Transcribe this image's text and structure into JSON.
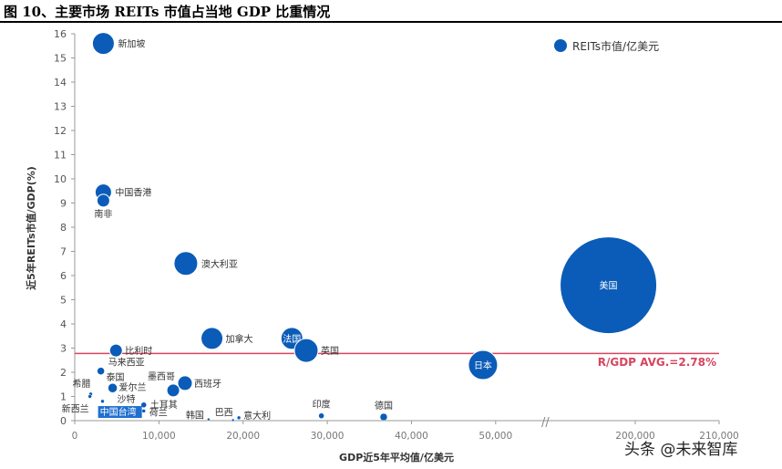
{
  "title": "图 10、主要市场 REITs 市值占当地 GDP 比重情况",
  "watermark": "头条 @未来智库",
  "chart_data": {
    "type": "bubble",
    "xlabel": "GDP近5年平均值/亿美元",
    "ylabel": "近5年REITs市值/GDP(%)",
    "legend": {
      "label": "REITs市值/亿美元",
      "position": "top-right"
    },
    "x_ticks": [
      "0",
      "10,000",
      "20,000",
      "30,000",
      "40,000",
      "50,000",
      "200,000",
      "210,000"
    ],
    "x_break": [
      55000,
      195000
    ],
    "ylim": [
      0,
      16
    ],
    "y_ticks": [
      "0",
      "1",
      "2",
      "3",
      "4",
      "5",
      "6",
      "7",
      "8",
      "9",
      "10",
      "11",
      "12",
      "13",
      "14",
      "15",
      "16"
    ],
    "avg_line": {
      "value": 2.78,
      "label": "R/GDP AVG.=2.78%",
      "color": "#d6455f"
    },
    "bubble_color": "#0a5cb8",
    "points": [
      {
        "name": "新加坡",
        "x": 3400,
        "y": 15.6,
        "size": 12
      },
      {
        "name": "中国香港",
        "x": 3400,
        "y": 9.45,
        "size": 9
      },
      {
        "name": "南非",
        "x": 3400,
        "y": 9.1,
        "size": 7
      },
      {
        "name": "澳大利亚",
        "x": 13200,
        "y": 6.5,
        "size": 13
      },
      {
        "name": "加拿大",
        "x": 16300,
        "y": 3.4,
        "size": 12
      },
      {
        "name": "法国",
        "x": 25800,
        "y": 3.4,
        "size": 12
      },
      {
        "name": "英国",
        "x": 27500,
        "y": 2.9,
        "size": 13
      },
      {
        "name": "日本",
        "x": 48500,
        "y": 2.3,
        "size": 16
      },
      {
        "name": "美国",
        "x": 196800,
        "y": 5.6,
        "size": 53
      },
      {
        "name": "比利时",
        "x": 4900,
        "y": 2.9,
        "size": 7
      },
      {
        "name": "马来西亚",
        "x": 3100,
        "y": 2.05,
        "size": 4
      },
      {
        "name": "泰国",
        "x": 4500,
        "y": 1.35,
        "size": 5
      },
      {
        "name": "爱尔兰",
        "x": 4500,
        "y": 1.35,
        "size": 5
      },
      {
        "name": "墨西哥",
        "x": 11700,
        "y": 1.25,
        "size": 7
      },
      {
        "name": "西班牙",
        "x": 13100,
        "y": 1.55,
        "size": 8
      },
      {
        "name": "希腊",
        "x": 1900,
        "y": 1.1,
        "size": 2
      },
      {
        "name": "新西兰",
        "x": 1800,
        "y": 1.0,
        "size": 2
      },
      {
        "name": "沙特",
        "x": 3300,
        "y": 0.8,
        "size": 2
      },
      {
        "name": "土耳其",
        "x": 8200,
        "y": 0.65,
        "size": 3
      },
      {
        "name": "荷兰",
        "x": 8200,
        "y": 0.4,
        "size": 2
      },
      {
        "name": "中国台湾",
        "x": 7000,
        "y": 0.3,
        "size": 2
      },
      {
        "name": "韩国",
        "x": 15900,
        "y": 0.05,
        "size": 1.5
      },
      {
        "name": "巴西",
        "x": 18800,
        "y": 0.02,
        "size": 1.5
      },
      {
        "name": "意大利",
        "x": 19500,
        "y": 0.12,
        "size": 2
      },
      {
        "name": "印度",
        "x": 29300,
        "y": 0.2,
        "size": 3
      },
      {
        "name": "德国",
        "x": 36700,
        "y": 0.15,
        "size": 4
      }
    ]
  }
}
